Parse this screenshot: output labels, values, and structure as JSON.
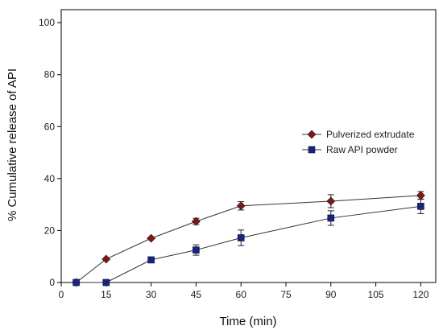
{
  "chart_data": {
    "type": "line",
    "xlabel": "Time (min)",
    "ylabel": "% Cumulative release of API",
    "xlim": [
      0,
      125
    ],
    "ylim": [
      0,
      105
    ],
    "xticks": [
      0,
      15,
      30,
      45,
      60,
      75,
      90,
      105,
      120
    ],
    "yticks": [
      0,
      20,
      40,
      60,
      80,
      100
    ],
    "grid": false,
    "legend_position": "right",
    "series": [
      {
        "name": "Pulverized extrudate",
        "marker": "diamond",
        "color": "#7B1A1A",
        "x": [
          5,
          15,
          30,
          45,
          60,
          90,
          120
        ],
        "y": [
          0,
          9.0,
          17.0,
          23.5,
          29.5,
          31.3,
          33.5
        ],
        "error": [
          0,
          0,
          0,
          1.2,
          1.6,
          2.5,
          1.5
        ]
      },
      {
        "name": "Raw API powder",
        "marker": "square",
        "color": "#1A237E",
        "x": [
          5,
          15,
          30,
          45,
          60,
          90,
          120
        ],
        "y": [
          0,
          0,
          8.7,
          12.5,
          17.2,
          24.8,
          29.3
        ],
        "error": [
          0,
          0,
          0,
          2.0,
          3.0,
          2.8,
          2.8
        ]
      }
    ]
  }
}
